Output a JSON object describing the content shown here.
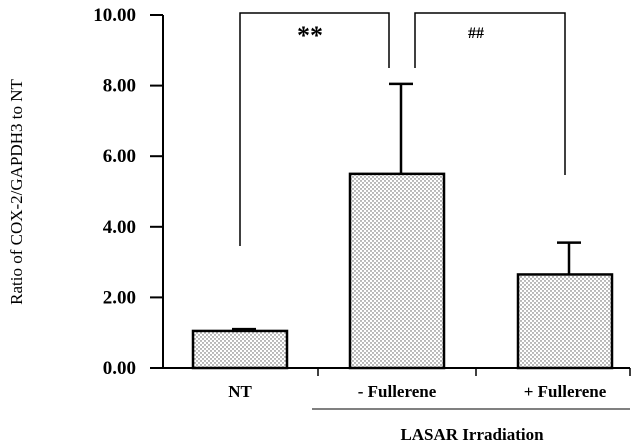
{
  "chart_data": {
    "type": "bar",
    "title": "",
    "ylabel": "Ratio of COX-2/GAPDH3 to NT",
    "xlabel": "",
    "ylim": [
      0,
      10
    ],
    "yticks": [
      "0.00",
      "2.00",
      "4.00",
      "6.00",
      "8.00",
      "10.00"
    ],
    "categories": [
      "NT",
      "- Fullerene",
      "+ Fullerene"
    ],
    "values": [
      1.05,
      5.5,
      2.65
    ],
    "error_plus": [
      0.05,
      2.55,
      0.9
    ],
    "group_label": "LASAR Irradiation",
    "annotations": [
      {
        "text": "**",
        "between": [
          "NT",
          "- Fullerene"
        ]
      },
      {
        "text": "##",
        "between": [
          "- Fullerene",
          "+ Fullerene"
        ]
      }
    ],
    "bar_fill": "dotted",
    "grid": false,
    "legend": "none"
  }
}
